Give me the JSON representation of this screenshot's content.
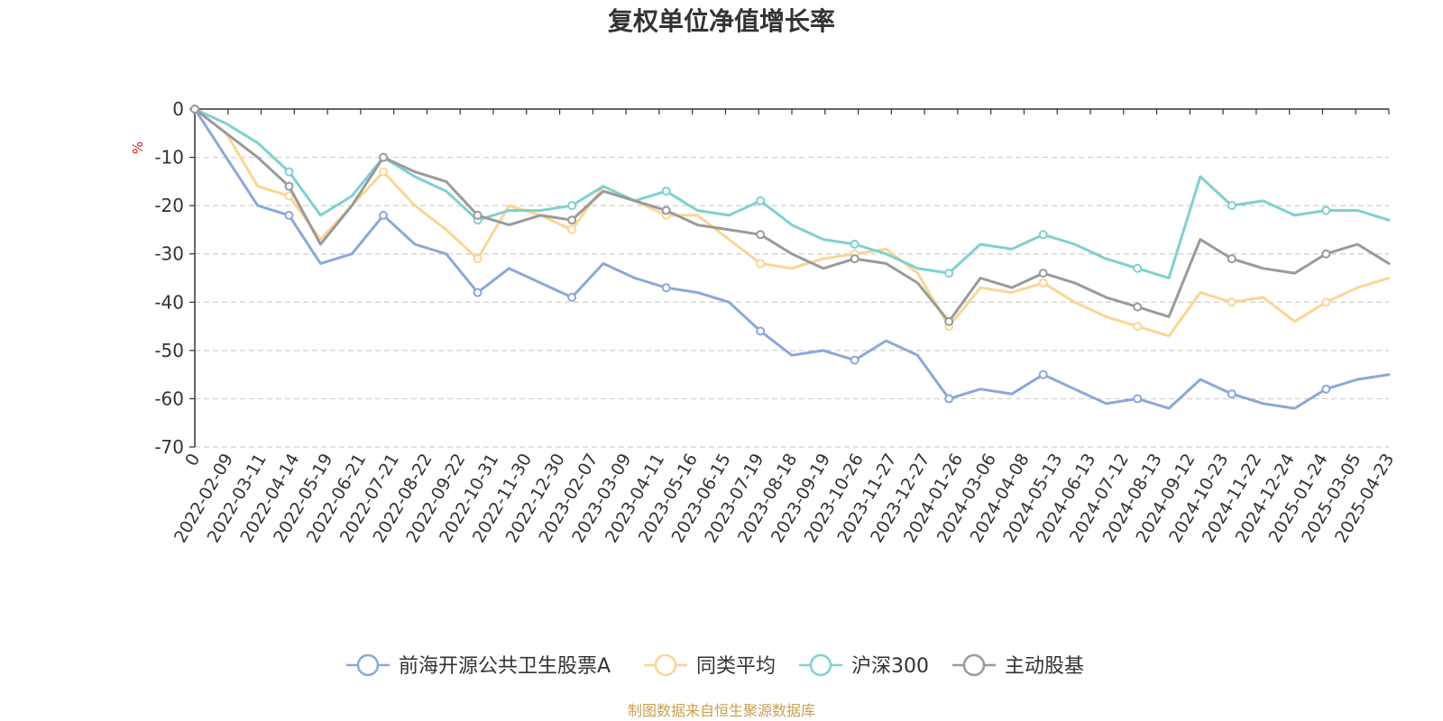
{
  "chart_data": {
    "type": "line",
    "title": "复权单位净值增长率",
    "ylabel": "%",
    "ylim": [
      -70,
      0
    ],
    "yticks": [
      "0",
      "-10",
      "-20",
      "-30",
      "-40",
      "-50",
      "-60",
      "-70"
    ],
    "x_ticks": [
      "0",
      "2022-02-09",
      "2022-03-11",
      "2022-04-14",
      "2022-05-19",
      "2022-06-21",
      "2022-07-21",
      "2022-08-22",
      "2022-09-22",
      "2022-10-31",
      "2022-11-30",
      "2022-12-30",
      "2023-02-07",
      "2023-03-09",
      "2023-04-11",
      "2023-05-16",
      "2023-06-15",
      "2023-07-19",
      "2023-08-18",
      "2023-09-19",
      "2023-10-26",
      "2023-11-27",
      "2023-12-27",
      "2024-01-26",
      "2024-03-06",
      "2024-04-08",
      "2024-05-13",
      "2024-06-13",
      "2024-07-12",
      "2024-08-13",
      "2024-09-12",
      "2024-10-23",
      "2024-11-22",
      "2024-12-24",
      "2025-01-24",
      "2025-03-05",
      "2025-04-23"
    ],
    "grid": true,
    "legend_position": "bottom",
    "source": "制图数据来自恒生聚源数据库",
    "series": [
      {
        "name": "前海开源公共卫生股票A",
        "color": "#8ba8d8",
        "values": [
          0,
          -10,
          -20,
          -22,
          -32,
          -30,
          -22,
          -28,
          -30,
          -38,
          -33,
          -36,
          -39,
          -32,
          -35,
          -37,
          -38,
          -40,
          -46,
          -51,
          -50,
          -52,
          -48,
          -51,
          -60,
          -58,
          -59,
          -55,
          -58,
          -61,
          -60,
          -62,
          -56,
          -59,
          -61,
          -62,
          -58,
          -56,
          -55
        ]
      },
      {
        "name": "同类平均",
        "color": "#fcd594",
        "values": [
          0,
          -5,
          -16,
          -18,
          -27,
          -20,
          -13,
          -20,
          -25,
          -31,
          -20,
          -22,
          -25,
          -16,
          -19,
          -22,
          -22,
          -27,
          -32,
          -33,
          -31,
          -30,
          -29,
          -34,
          -45,
          -37,
          -38,
          -36,
          -40,
          -43,
          -45,
          -47,
          -38,
          -40,
          -39,
          -44,
          -40,
          -37,
          -35
        ]
      },
      {
        "name": "沪深300",
        "color": "#7fd0d0",
        "values": [
          0,
          -3,
          -7,
          -13,
          -22,
          -18,
          -10,
          -14,
          -17,
          -23,
          -21,
          -21,
          -20,
          -16,
          -19,
          -17,
          -21,
          -22,
          -19,
          -24,
          -27,
          -28,
          -30,
          -33,
          -34,
          -28,
          -29,
          -26,
          -28,
          -31,
          -33,
          -35,
          -14,
          -20,
          -19,
          -22,
          -21,
          -21,
          -23
        ]
      },
      {
        "name": "主动股基",
        "color": "#9a9a9a",
        "values": [
          0,
          -5,
          -10,
          -16,
          -28,
          -20,
          -10,
          -13,
          -15,
          -22,
          -24,
          -22,
          -23,
          -17,
          -19,
          -21,
          -24,
          -25,
          -26,
          -30,
          -33,
          -31,
          -32,
          -36,
          -44,
          -35,
          -37,
          -34,
          -36,
          -39,
          -41,
          -43,
          -27,
          -31,
          -33,
          -34,
          -30,
          -28,
          -32
        ]
      }
    ]
  }
}
